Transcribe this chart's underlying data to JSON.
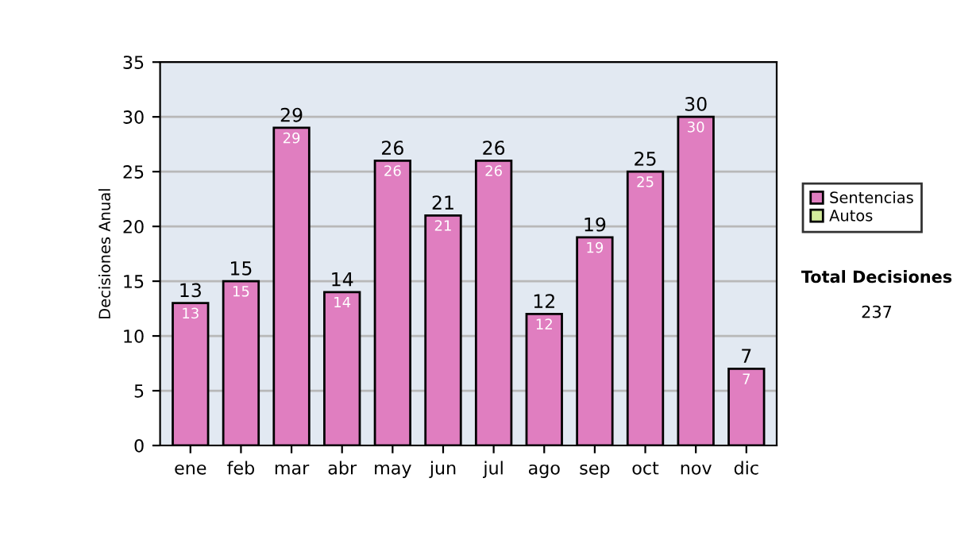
{
  "chart_data": {
    "type": "bar",
    "stacked": true,
    "ylabel": "Decisiones Anual",
    "categories": [
      "ene",
      "feb",
      "mar",
      "abr",
      "may",
      "jun",
      "jul",
      "ago",
      "sep",
      "oct",
      "nov",
      "dic"
    ],
    "series": [
      {
        "name": "Sentencias",
        "color": "#e07ec0",
        "values": [
          13,
          15,
          29,
          14,
          26,
          21,
          26,
          12,
          19,
          25,
          30,
          7
        ]
      },
      {
        "name": "Autos",
        "color": "#d4ec9c",
        "values": [
          null,
          null,
          null,
          null,
          null,
          null,
          null,
          null,
          null,
          null,
          null,
          null
        ]
      }
    ],
    "data_labels": true,
    "totals": [
      "13",
      "15",
      "29",
      "14",
      "26",
      "21",
      "26",
      "12",
      "19",
      "25",
      "30",
      "7"
    ],
    "ylim": [
      0,
      35
    ],
    "yticks": [
      0,
      5,
      10,
      15,
      20,
      25,
      30,
      35
    ],
    "grid": "y",
    "legend": "right",
    "annotations": [
      "Total Decisiones",
      "237"
    ]
  }
}
